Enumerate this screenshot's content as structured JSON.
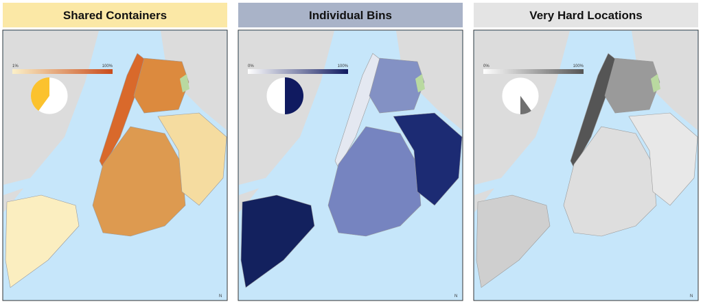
{
  "panels": [
    {
      "title": "Shared Containers",
      "title_bg": "#fbe8a6",
      "legend": {
        "min": "1%",
        "max": "100%",
        "color_low": "#fbf0c8",
        "color_high": "#c94c1c"
      },
      "pie": {
        "value": 40,
        "color": "#fbc22e"
      },
      "north": "N"
    },
    {
      "title": "Individual Bins",
      "title_bg": "#a9b3c8",
      "legend": {
        "min": "0%",
        "max": "100%",
        "color_low": "#ffffff",
        "color_high": "#101a60"
      },
      "pie": {
        "value": 50,
        "color": "#101a60"
      },
      "north": "N"
    },
    {
      "title": "Very Hard Locations",
      "title_bg": "#e4e4e4",
      "legend": {
        "min": "0%",
        "max": "100%",
        "color_low": "#ffffff",
        "color_high": "#555555"
      },
      "pie": {
        "value": 10,
        "color": "#707070"
      },
      "north": "N"
    }
  ]
}
